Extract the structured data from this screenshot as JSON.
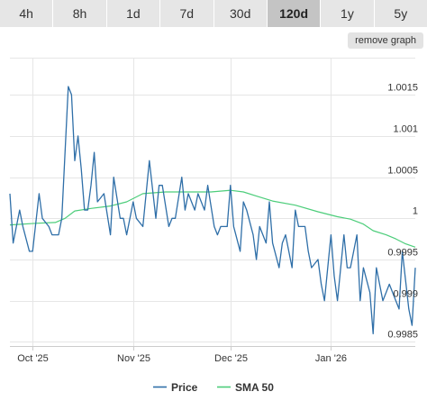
{
  "tabs": [
    {
      "label": "4h",
      "active": false
    },
    {
      "label": "8h",
      "active": false
    },
    {
      "label": "1d",
      "active": false
    },
    {
      "label": "7d",
      "active": false
    },
    {
      "label": "30d",
      "active": false
    },
    {
      "label": "120d",
      "active": true
    },
    {
      "label": "1y",
      "active": false
    },
    {
      "label": "5y",
      "active": false
    }
  ],
  "remove_graph_label": "remove graph",
  "colors": {
    "price": "#2f6fa8",
    "sma": "#4ccd7a",
    "grid": "#e6e6e6",
    "tab_bg": "#e6e6e6",
    "tab_active_bg": "#c4c4c4"
  },
  "chart_data": {
    "type": "line",
    "title": "",
    "xlabel": "",
    "ylabel": "",
    "ylim": [
      0.99845,
      1.00195
    ],
    "y_ticks": [
      0.9985,
      0.999,
      0.9995,
      1,
      1.0005,
      1.001,
      1.0015
    ],
    "y_tick_labels": [
      "0.9985",
      "0.999",
      "0.9995",
      "1",
      "1.0005",
      "1.001",
      "1.0015"
    ],
    "x_range": [
      "2025-09-24",
      "2026-01-27"
    ],
    "x_ticks": [
      {
        "date": "2025-10-01",
        "label": "Oct '25"
      },
      {
        "date": "2025-11-01",
        "label": "Nov '25"
      },
      {
        "date": "2025-12-01",
        "label": "Dec '25"
      },
      {
        "date": "2026-01-01",
        "label": "Jan '26"
      }
    ],
    "grid": true,
    "legend_position": "bottom",
    "series": [
      {
        "name": "Price",
        "x": [
          "2025-09-24",
          "2025-09-25",
          "2025-09-27",
          "2025-09-28",
          "2025-09-30",
          "2025-10-01",
          "2025-10-03",
          "2025-10-04",
          "2025-10-06",
          "2025-10-07",
          "2025-10-09",
          "2025-10-10",
          "2025-10-12",
          "2025-10-13",
          "2025-10-14",
          "2025-10-15",
          "2025-10-16",
          "2025-10-17",
          "2025-10-18",
          "2025-10-19",
          "2025-10-20",
          "2025-10-21",
          "2025-10-23",
          "2025-10-25",
          "2025-10-26",
          "2025-10-28",
          "2025-10-29",
          "2025-10-30",
          "2025-11-01",
          "2025-11-02",
          "2025-11-04",
          "2025-11-05",
          "2025-11-06",
          "2025-11-08",
          "2025-11-09",
          "2025-11-10",
          "2025-11-12",
          "2025-11-13",
          "2025-11-14",
          "2025-11-16",
          "2025-11-17",
          "2025-11-18",
          "2025-11-20",
          "2025-11-21",
          "2025-11-23",
          "2025-11-24",
          "2025-11-26",
          "2025-11-27",
          "2025-11-28",
          "2025-11-30",
          "2025-12-01",
          "2025-12-02",
          "2025-12-04",
          "2025-12-05",
          "2025-12-06",
          "2025-12-08",
          "2025-12-09",
          "2025-12-10",
          "2025-12-12",
          "2025-12-13",
          "2025-12-14",
          "2025-12-16",
          "2025-12-17",
          "2025-12-18",
          "2025-12-20",
          "2025-12-21",
          "2025-12-22",
          "2025-12-24",
          "2025-12-25",
          "2025-12-26",
          "2025-12-28",
          "2025-12-29",
          "2025-12-30",
          "2026-01-01",
          "2026-01-02",
          "2026-01-03",
          "2026-01-05",
          "2026-01-06",
          "2026-01-07",
          "2026-01-09",
          "2026-01-10",
          "2026-01-11",
          "2026-01-13",
          "2026-01-14",
          "2026-01-15",
          "2026-01-17",
          "2026-01-18",
          "2026-01-19",
          "2026-01-21",
          "2026-01-22",
          "2026-01-23",
          "2026-01-25",
          "2026-01-26",
          "2026-01-27"
        ],
        "y": [
          1.0003,
          0.9997,
          1.0001,
          0.9999,
          0.9996,
          0.9996,
          1.0003,
          1.0,
          0.9999,
          0.9998,
          0.9998,
          1.0,
          1.0016,
          1.0015,
          1.0007,
          1.001,
          1.0006,
          1.0001,
          1.0001,
          1.0004,
          1.0008,
          1.0002,
          1.0003,
          0.9998,
          1.0005,
          1.0,
          1.0,
          0.9998,
          1.0002,
          1.0,
          0.9999,
          1.0003,
          1.0007,
          1.0,
          1.0004,
          1.0004,
          0.9999,
          1.0,
          1.0,
          1.0005,
          1.0001,
          1.0003,
          1.0001,
          1.0003,
          1.0001,
          1.0004,
          0.9999,
          0.9998,
          0.9999,
          0.9999,
          1.0004,
          0.9999,
          0.9996,
          1.0002,
          1.0001,
          0.9998,
          0.9995,
          0.9999,
          0.9997,
          1.0002,
          0.9997,
          0.9994,
          0.9997,
          0.9998,
          0.9994,
          1.0001,
          0.9999,
          0.9999,
          0.9996,
          0.9994,
          0.9995,
          0.9992,
          0.999,
          0.9998,
          0.9993,
          0.999,
          0.9998,
          0.9994,
          0.9994,
          0.9998,
          0.999,
          0.9994,
          0.9991,
          0.9986,
          0.9994,
          0.999,
          0.9991,
          0.9992,
          0.999,
          0.9989,
          0.9996,
          0.9989,
          0.9987,
          0.9994
        ]
      },
      {
        "name": "SMA 50",
        "x": [
          "2025-09-24",
          "2025-10-02",
          "2025-10-08",
          "2025-10-11",
          "2025-10-14",
          "2025-10-19",
          "2025-10-25",
          "2025-10-30",
          "2025-11-04",
          "2025-11-11",
          "2025-11-18",
          "2025-11-25",
          "2025-12-01",
          "2025-12-05",
          "2025-12-09",
          "2025-12-14",
          "2025-12-21",
          "2025-12-28",
          "2026-01-03",
          "2026-01-07",
          "2026-01-11",
          "2026-01-14",
          "2026-01-18",
          "2026-01-21",
          "2026-01-24",
          "2026-01-27"
        ],
        "y": [
          0.99992,
          0.99994,
          0.99995,
          1.0,
          1.00009,
          1.00012,
          1.00015,
          1.0002,
          1.0003,
          1.00032,
          1.00032,
          1.00032,
          1.00034,
          1.00032,
          1.00027,
          1.00021,
          1.00016,
          1.00008,
          1.00002,
          0.99999,
          0.99993,
          0.99985,
          0.9998,
          0.99975,
          0.99969,
          0.99965
        ]
      }
    ]
  }
}
